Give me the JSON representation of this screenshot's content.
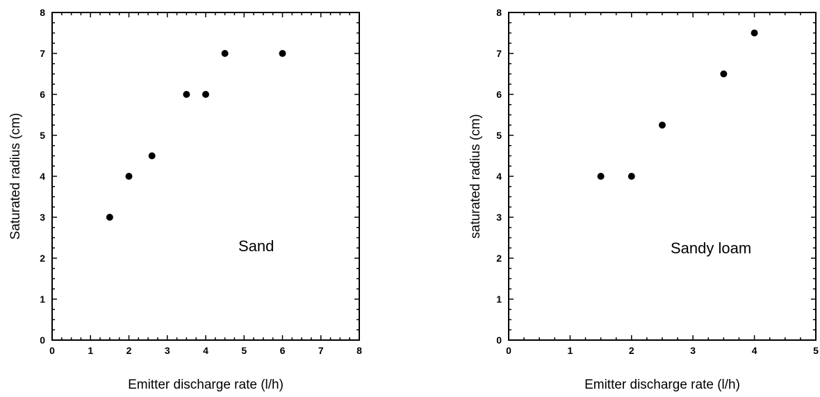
{
  "chart_data": [
    {
      "type": "scatter",
      "title": "",
      "xlabel": "Emitter discharge rate (l/h)",
      "ylabel": "Saturated radius (cm)",
      "annotation": "Sand",
      "xlim": [
        0,
        8
      ],
      "ylim": [
        0,
        8
      ],
      "xticks": [
        0,
        1,
        2,
        3,
        4,
        5,
        6,
        7,
        8
      ],
      "yticks": [
        0,
        1,
        2,
        3,
        4,
        5,
        6,
        7,
        8
      ],
      "x": [
        1.5,
        2.0,
        2.6,
        3.5,
        4.0,
        4.5,
        6.0
      ],
      "y": [
        3.0,
        4.0,
        4.5,
        6.0,
        6.0,
        7.0,
        7.0
      ],
      "grid": false,
      "marker_color": "#000000"
    },
    {
      "type": "scatter",
      "title": "",
      "xlabel": "Emitter discharge rate (l/h)",
      "ylabel": "saturated radius (cm)",
      "annotation": "Sandy loam",
      "xlim": [
        0,
        5
      ],
      "ylim": [
        0,
        8
      ],
      "xticks": [
        0,
        1,
        2,
        3,
        4,
        5
      ],
      "yticks": [
        0,
        1,
        2,
        3,
        4,
        5,
        6,
        7,
        8
      ],
      "x": [
        1.5,
        2.0,
        2.5,
        3.5,
        4.0
      ],
      "y": [
        4.0,
        4.0,
        5.25,
        6.5,
        7.5
      ],
      "grid": false,
      "marker_color": "#000000"
    }
  ]
}
